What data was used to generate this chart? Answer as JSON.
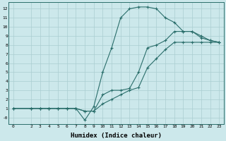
{
  "xlabel": "Humidex (Indice chaleur)",
  "bg_color": "#cce8eb",
  "line_color": "#2a6e6b",
  "grid_color": "#aacdd1",
  "xlim": [
    -0.5,
    23.5
  ],
  "ylim": [
    -0.7,
    12.7
  ],
  "xticks": [
    0,
    2,
    3,
    4,
    5,
    6,
    7,
    8,
    9,
    10,
    11,
    12,
    13,
    14,
    15,
    16,
    17,
    18,
    19,
    20,
    21,
    22,
    23
  ],
  "yticks": [
    0,
    1,
    2,
    3,
    4,
    5,
    6,
    7,
    8,
    9,
    10,
    11,
    12
  ],
  "ytick_labels": [
    "-0",
    "1",
    "2",
    "3",
    "4",
    "5",
    "6",
    "7",
    "8",
    "9",
    "10",
    "11",
    "12"
  ],
  "line1_x": [
    0,
    2,
    3,
    4,
    5,
    6,
    7,
    8,
    9,
    10,
    11,
    12,
    13,
    14,
    15,
    16,
    17,
    18,
    19,
    20,
    21,
    22,
    23
  ],
  "line1_y": [
    1,
    1,
    1,
    1,
    1,
    1,
    1,
    0.7,
    0.7,
    1.5,
    2.0,
    2.5,
    3.0,
    3.3,
    5.5,
    6.5,
    7.5,
    8.3,
    8.3,
    8.3,
    8.3,
    8.3,
    8.3
  ],
  "line2_x": [
    0,
    2,
    3,
    4,
    5,
    6,
    7,
    8,
    9,
    10,
    11,
    12,
    13,
    14,
    15,
    16,
    17,
    18,
    19,
    20,
    21,
    22,
    23
  ],
  "line2_y": [
    1,
    1,
    1,
    1,
    1,
    1,
    1,
    -0.3,
    1.2,
    5.0,
    7.7,
    11.0,
    12.0,
    12.2,
    12.2,
    12.0,
    11.0,
    10.5,
    9.5,
    9.5,
    9.0,
    8.5,
    8.3
  ],
  "line3_x": [
    0,
    2,
    3,
    4,
    5,
    6,
    7,
    8,
    9,
    10,
    11,
    12,
    13,
    14,
    15,
    16,
    17,
    18,
    19,
    20,
    21,
    22,
    23
  ],
  "line3_y": [
    1,
    1,
    1,
    1,
    1,
    1,
    1,
    0.7,
    0.7,
    2.5,
    3.0,
    3.0,
    3.2,
    5.0,
    7.7,
    8.0,
    8.5,
    9.5,
    9.5,
    9.5,
    8.8,
    8.5,
    8.3
  ]
}
